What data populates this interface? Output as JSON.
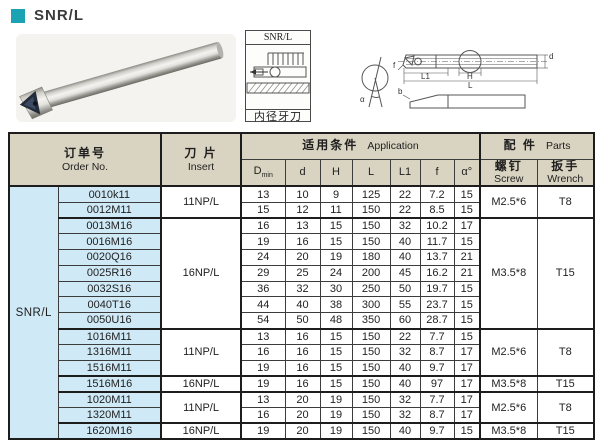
{
  "page": {
    "title": "SNR/L"
  },
  "colors": {
    "accent": "#1ba3b4",
    "header_bg": "#d9d3c1",
    "highlight_bg": "#cfe9f6"
  },
  "thumbnail": {
    "title": "SNR/L",
    "caption": "内径牙刀"
  },
  "drawing": {
    "labels": {
      "alpha": "α",
      "f": "f",
      "l1": "L1",
      "h": "H",
      "l": "L",
      "d": "d",
      "b": "b"
    }
  },
  "table": {
    "series_label": "SNR/L",
    "header": {
      "order_no_zh": "订单号",
      "order_no_en": "Order No.",
      "insert_zh": "刀 片",
      "insert_en": "Insert",
      "application_zh": "适用条件",
      "application_en": "Application",
      "parts_zh": "配 件",
      "parts_en": "Parts",
      "screw_zh": "螺钉",
      "screw_en": "Screw",
      "wrench_zh": "扳手",
      "wrench_en": "Wrench",
      "columns": [
        {
          "label": "D",
          "sub": "min"
        },
        {
          "label": "d"
        },
        {
          "label": "H"
        },
        {
          "label": "L"
        },
        {
          "label": "L1"
        },
        {
          "label": "f"
        },
        {
          "label": "α°"
        }
      ]
    },
    "groups": [
      {
        "insert": "11NP/L",
        "screw": "M2.5*6",
        "wrench": "T8",
        "rows": [
          {
            "order": "0010k11",
            "values": [
              "13",
              "10",
              "9",
              "125",
              "22",
              "7.2",
              "15"
            ]
          },
          {
            "order": "0012M11",
            "values": [
              "15",
              "12",
              "11",
              "150",
              "22",
              "8.5",
              "15"
            ]
          }
        ]
      },
      {
        "insert": "16NP/L",
        "screw": "M3.5*8",
        "wrench": "T15",
        "rows": [
          {
            "order": "0013M16",
            "values": [
              "16",
              "13",
              "15",
              "150",
              "32",
              "10.2",
              "17"
            ]
          },
          {
            "order": "0016M16",
            "values": [
              "19",
              "16",
              "15",
              "150",
              "40",
              "11.7",
              "15"
            ]
          },
          {
            "order": "0020Q16",
            "values": [
              "24",
              "20",
              "19",
              "180",
              "40",
              "13.7",
              "21"
            ]
          },
          {
            "order": "0025R16",
            "values": [
              "29",
              "25",
              "24",
              "200",
              "45",
              "16.2",
              "21"
            ]
          },
          {
            "order": "0032S16",
            "values": [
              "36",
              "32",
              "30",
              "250",
              "50",
              "19.7",
              "15"
            ]
          },
          {
            "order": "0040T16",
            "values": [
              "44",
              "40",
              "38",
              "300",
              "55",
              "23.7",
              "15"
            ]
          },
          {
            "order": "0050U16",
            "values": [
              "54",
              "50",
              "48",
              "350",
              "60",
              "28.7",
              "15"
            ]
          }
        ]
      },
      {
        "insert": "11NP/L",
        "screw": "M2.5*6",
        "wrench": "T8",
        "rows": [
          {
            "order": "1016M11",
            "values": [
              "13",
              "16",
              "15",
              "150",
              "22",
              "7.7",
              "15"
            ]
          },
          {
            "order": "1316M11",
            "values": [
              "16",
              "16",
              "15",
              "150",
              "32",
              "8.7",
              "17"
            ]
          },
          {
            "order": "1516M11",
            "values": [
              "19",
              "16",
              "15",
              "150",
              "40",
              "9.7",
              "17"
            ]
          }
        ]
      },
      {
        "insert": "16NP/L",
        "screw": "M3.5*8",
        "wrench": "T15",
        "rows": [
          {
            "order": "1516M16",
            "values": [
              "19",
              "16",
              "15",
              "150",
              "40",
              "97",
              "17"
            ]
          }
        ]
      },
      {
        "insert": "11NP/L",
        "screw": "M2.5*6",
        "wrench": "T8",
        "rows": [
          {
            "order": "1020M11",
            "values": [
              "13",
              "20",
              "19",
              "150",
              "32",
              "7.7",
              "17"
            ]
          },
          {
            "order": "1320M11",
            "values": [
              "16",
              "20",
              "19",
              "150",
              "32",
              "8.7",
              "17"
            ]
          }
        ]
      },
      {
        "insert": "16NP/L",
        "screw": "M3.5*8",
        "wrench": "T15",
        "rows": [
          {
            "order": "1620M16",
            "values": [
              "19",
              "20",
              "19",
              "150",
              "40",
              "9.7",
              "15"
            ]
          }
        ]
      }
    ]
  }
}
